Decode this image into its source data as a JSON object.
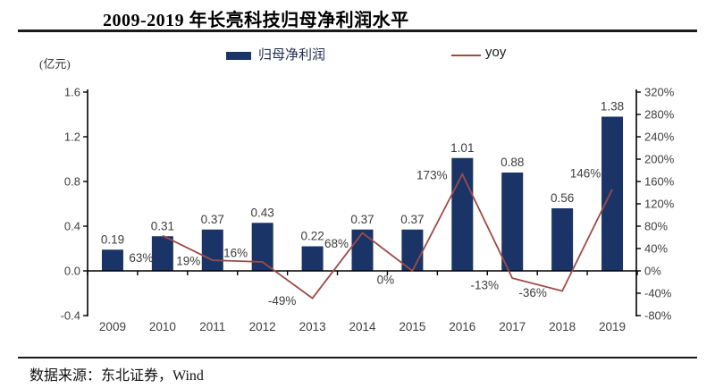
{
  "page": {
    "title": "2009-2019 年长亮科技归母净利润水平",
    "source_note": "数据来源：东北证券，Wind"
  },
  "legend": {
    "bar_label": "归母净利润",
    "line_label": "yoy"
  },
  "colors": {
    "bar": "#1b3467",
    "line": "#9e4b47",
    "axis": "#000000",
    "tick_text": "#404040",
    "data_label_text": "#3d3d3d"
  },
  "chart_data": {
    "type": "bar+line",
    "title": "2009-2019 年长亮科技归母净利润水平",
    "unit_label": "(亿元)",
    "grid": false,
    "legend_position": "top",
    "categories": [
      "2009",
      "2010",
      "2011",
      "2012",
      "2013",
      "2014",
      "2015",
      "2016",
      "2017",
      "2018",
      "2019"
    ],
    "series": [
      {
        "name": "归母净利润",
        "type": "bar",
        "axis": "left",
        "color": "#1b3467",
        "values": [
          0.19,
          0.31,
          0.37,
          0.43,
          0.22,
          0.37,
          0.37,
          1.01,
          0.88,
          0.56,
          1.38
        ],
        "labels": [
          "0.19",
          "0.31",
          "0.37",
          "0.43",
          "0.22",
          "0.37",
          "0.37",
          "1.01",
          "0.88",
          "0.56",
          "1.38"
        ]
      },
      {
        "name": "yoy",
        "type": "line",
        "axis": "right",
        "color": "#9e4b47",
        "values": [
          null,
          63,
          19,
          16,
          -49,
          68,
          0,
          173,
          -13,
          -36,
          146
        ],
        "labels": [
          null,
          "63%",
          "19%",
          "16%",
          "-49%",
          "68%",
          "0%",
          "173%",
          "-13%",
          "-36%",
          "146%"
        ],
        "label_offsets": [
          null,
          [
            -24,
            25
          ],
          [
            -27,
            1
          ],
          [
            -30,
            -10
          ],
          [
            -34,
            3
          ],
          [
            -29,
            12
          ],
          [
            -30,
            10
          ],
          [
            -34,
            1
          ],
          [
            -31,
            8
          ],
          [
            -33,
            2
          ],
          [
            -30,
            -18
          ]
        ]
      }
    ],
    "left_axis": {
      "title": "(亿元)",
      "min": -0.4,
      "max": 1.6,
      "ticks": [
        1.6,
        1.2,
        0.8,
        0.4,
        0.0,
        -0.4
      ],
      "tick_labels": [
        "1.6",
        "1.2",
        "0.8",
        "0.4",
        "0.0",
        "-0.4"
      ]
    },
    "right_axis": {
      "min": -80,
      "max": 320,
      "ticks": [
        320,
        280,
        240,
        200,
        160,
        120,
        80,
        40,
        0,
        -40,
        -80
      ],
      "tick_labels": [
        "320%",
        "280%",
        "240%",
        "200%",
        "160%",
        "120%",
        "80%",
        "40%",
        "0%",
        "-40%",
        "-80%"
      ]
    }
  }
}
